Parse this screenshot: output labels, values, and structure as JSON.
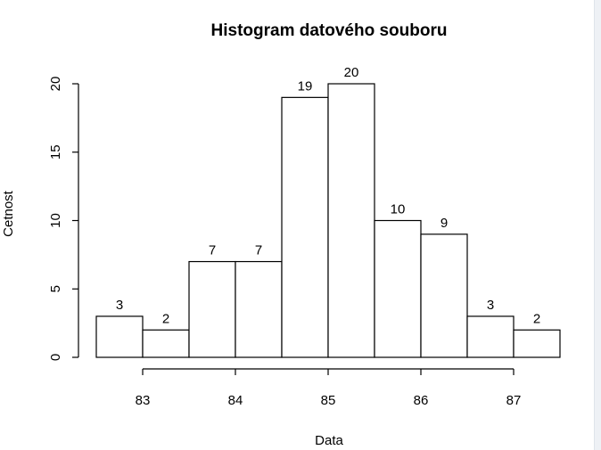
{
  "chart_data": {
    "type": "bar",
    "title": "Histogram datového souboru",
    "xlabel": "Data",
    "ylabel": "Cetnost",
    "bins": [
      [
        82.5,
        83.0
      ],
      [
        83.0,
        83.5
      ],
      [
        83.5,
        84.0
      ],
      [
        84.0,
        84.5
      ],
      [
        84.5,
        85.0
      ],
      [
        85.0,
        85.5
      ],
      [
        85.5,
        86.0
      ],
      [
        86.0,
        86.5
      ],
      [
        86.5,
        87.0
      ],
      [
        87.0,
        87.5
      ]
    ],
    "values": [
      3,
      2,
      7,
      7,
      19,
      20,
      10,
      9,
      3,
      2
    ],
    "xlim": [
      82.5,
      87.5
    ],
    "ylim": [
      0,
      20
    ],
    "x_ticks": [
      "83",
      "84",
      "85",
      "86",
      "87"
    ],
    "x_tick_values": [
      83,
      84,
      85,
      86,
      87
    ],
    "y_ticks": [
      "0",
      "5",
      "10",
      "15",
      "20"
    ],
    "y_tick_values": [
      0,
      5,
      10,
      15,
      20
    ],
    "grid": false,
    "show_value_labels": true
  }
}
